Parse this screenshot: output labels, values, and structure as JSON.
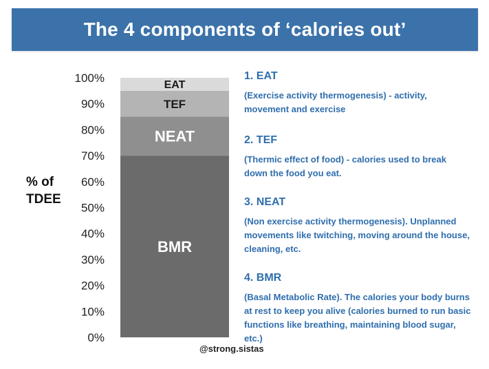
{
  "title": "The 4 components of ‘calories out’",
  "ylabel_line1": "% of",
  "ylabel_line2": "TDEE",
  "watermark": "@strong.sistas",
  "descriptions": [
    {
      "heading": "1. EAT",
      "text": "(Exercise activity thermogenesis) - activity, movement and exercise"
    },
    {
      "heading": "2. TEF",
      "text": "(Thermic effect of food) - calories used to break down the food you eat."
    },
    {
      "heading": "3. NEAT",
      "text": "(Non exercise activity thermogenesis). Unplanned movements like twitching, moving around the house, cleaning, etc."
    },
    {
      "heading": "4. BMR",
      "text": "(Basal Metabolic Rate). The calories your body burns at rest to keep you alive (calories burned to run basic functions like breathing, maintaining blood sugar, etc.)"
    }
  ],
  "colors": {
    "banner": "#3c72aa",
    "text_blue": "#2f6ead",
    "bmr": "#6b6b6b",
    "neat": "#8f8f8f",
    "tef": "#b4b4b4",
    "eat": "#dadada"
  },
  "chart_data": {
    "type": "bar",
    "stacked": true,
    "categories": [
      ""
    ],
    "series": [
      {
        "name": "BMR",
        "values": [
          70
        ]
      },
      {
        "name": "NEAT",
        "values": [
          15
        ]
      },
      {
        "name": "TEF",
        "values": [
          10
        ]
      },
      {
        "name": "EAT",
        "values": [
          5
        ]
      }
    ],
    "ylim": [
      0,
      100
    ],
    "y_ticks": [
      "0%",
      "10%",
      "20%",
      "30%",
      "40%",
      "50%",
      "60%",
      "70%",
      "80%",
      "90%",
      "100%"
    ],
    "ylabel": "% of TDEE",
    "grid": false,
    "legend": "none"
  }
}
